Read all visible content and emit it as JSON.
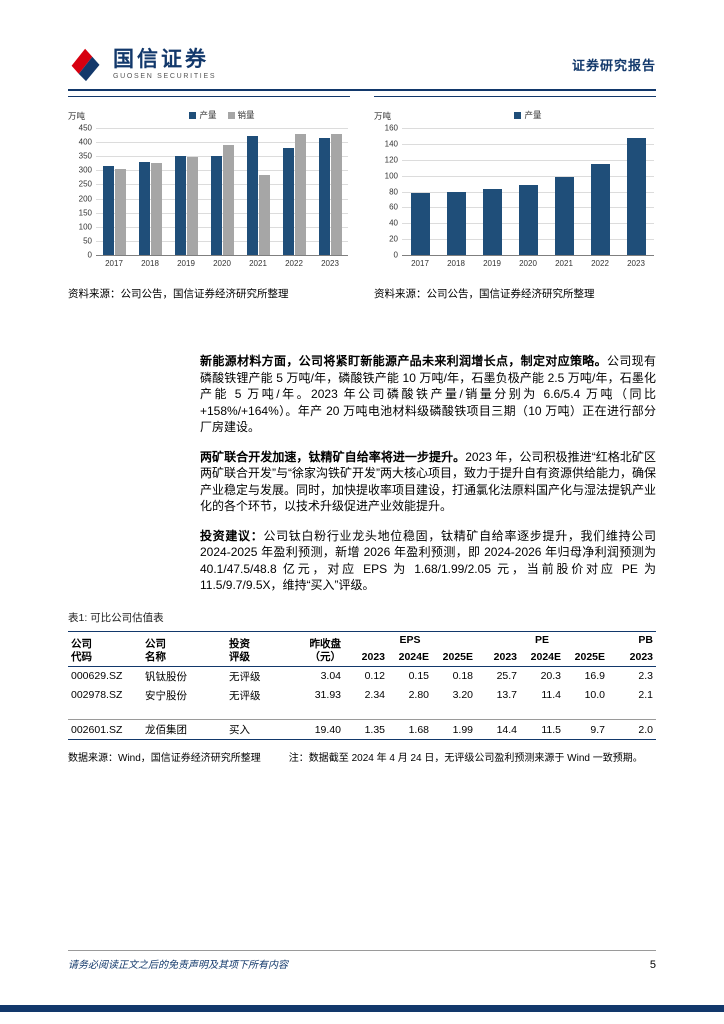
{
  "header": {
    "brand_cn": "国信证券",
    "brand_en": "GUOSEN SECURITIES",
    "report_type": "证券研究报告"
  },
  "chart_data": [
    {
      "type": "bar",
      "title": "",
      "unit_label": "万吨",
      "categories": [
        "2017",
        "2018",
        "2019",
        "2020",
        "2021",
        "2022",
        "2023"
      ],
      "series": [
        {
          "name": "产量",
          "color": "#1f4e79",
          "values": [
            315,
            330,
            350,
            352,
            420,
            380,
            414
          ]
        },
        {
          "name": "销量",
          "color": "#a6a6a6",
          "values": [
            305,
            325,
            348,
            390,
            285,
            430,
            428
          ]
        }
      ],
      "ylim": [
        0,
        450
      ],
      "ytick_step": 50,
      "grid": true,
      "legend_position": "top",
      "source": "资料来源：公司公告，国信证券经济研究所整理"
    },
    {
      "type": "bar",
      "title": "",
      "unit_label": "万吨",
      "categories": [
        "2017",
        "2018",
        "2019",
        "2020",
        "2021",
        "2022",
        "2023"
      ],
      "series": [
        {
          "name": "产量",
          "color": "#1f4e79",
          "values": [
            78,
            80,
            83,
            88,
            98,
            115,
            147
          ]
        }
      ],
      "ylim": [
        0,
        160
      ],
      "ytick_step": 20,
      "grid": true,
      "legend_position": "top",
      "source": "资料来源：公司公告，国信证券经济研究所整理"
    }
  ],
  "paragraphs": [
    {
      "lead": "新能源材料方面，公司将紧盯新能源产品未来利润增长点，制定对应策略。",
      "body": "公司现有磷酸铁锂产能 5 万吨/年，磷酸铁产能 10 万吨/年，石墨负极产能 2.5 万吨/年，石墨化产能 5 万吨/年。2023 年公司磷酸铁产量/销量分别为 6.6/5.4 万吨（同比+158%/+164%）。年产 20 万吨电池材料级磷酸铁项目三期（10 万吨）正在进行部分厂房建设。"
    },
    {
      "lead": "两矿联合开发加速，钛精矿自给率将进一步提升。",
      "body": "2023 年，公司积极推进“红格北矿区两矿联合开发”与“徐家沟铁矿开发”两大核心项目，致力于提升自有资源供给能力，确保产业稳定与发展。同时，加快提收率项目建设，打通氯化法原料国产化与湿法提钒产业化的各个环节，以技术升级促进产业效能提升。"
    },
    {
      "lead": "投资建议：",
      "body": "公司钛白粉行业龙头地位稳固，钛精矿自给率逐步提升，我们维持公司 2024-2025 年盈利预测，新增 2026 年盈利预测，即 2024-2026 年归母净利润预测为 40.1/47.5/48.8 亿元，对应 EPS 为 1.68/1.99/2.05 元，当前股价对应 PE 为 11.5/9.7/9.5X，维持“买入”评级。"
    }
  ],
  "table": {
    "caption": "表1: 可比公司估值表",
    "col_headers": {
      "code": "公司\n代码",
      "name": "公司\n名称",
      "rating": "投资\n评级",
      "close": "昨收盘\n（元）",
      "eps_group": "EPS",
      "pe_group": "PE",
      "pb_group": "PB",
      "years": [
        "2023",
        "2024E",
        "2025E",
        "2023",
        "2024E",
        "2025E",
        "2023"
      ]
    },
    "rows": [
      [
        "000629.SZ",
        "钒钛股份",
        "无评级",
        "3.04",
        "0.12",
        "0.15",
        "0.18",
        "25.7",
        "20.3",
        "16.9",
        "2.3"
      ],
      [
        "002978.SZ",
        "安宁股份",
        "无评级",
        "31.93",
        "2.34",
        "2.80",
        "3.20",
        "13.7",
        "11.4",
        "10.0",
        "2.1"
      ],
      [
        "002601.SZ",
        "龙佰集团",
        "买入",
        "19.40",
        "1.35",
        "1.68",
        "1.99",
        "14.4",
        "11.5",
        "9.7",
        "2.0"
      ]
    ],
    "note_source": "数据来源：Wind，国信证券经济研究所整理",
    "note_remark": "注：数据截至 2024 年 4 月 24 日，无评级公司盈利预测来源于 Wind 一致预期。"
  },
  "footer": {
    "disclaimer": "请务必阅读正文之后的免责声明及其项下所有内容",
    "page_number": "5"
  },
  "colors": {
    "navy": "#12386b",
    "bar_blue": "#1f4e79",
    "bar_gray": "#a6a6a6",
    "brand_red": "#d7000f"
  }
}
